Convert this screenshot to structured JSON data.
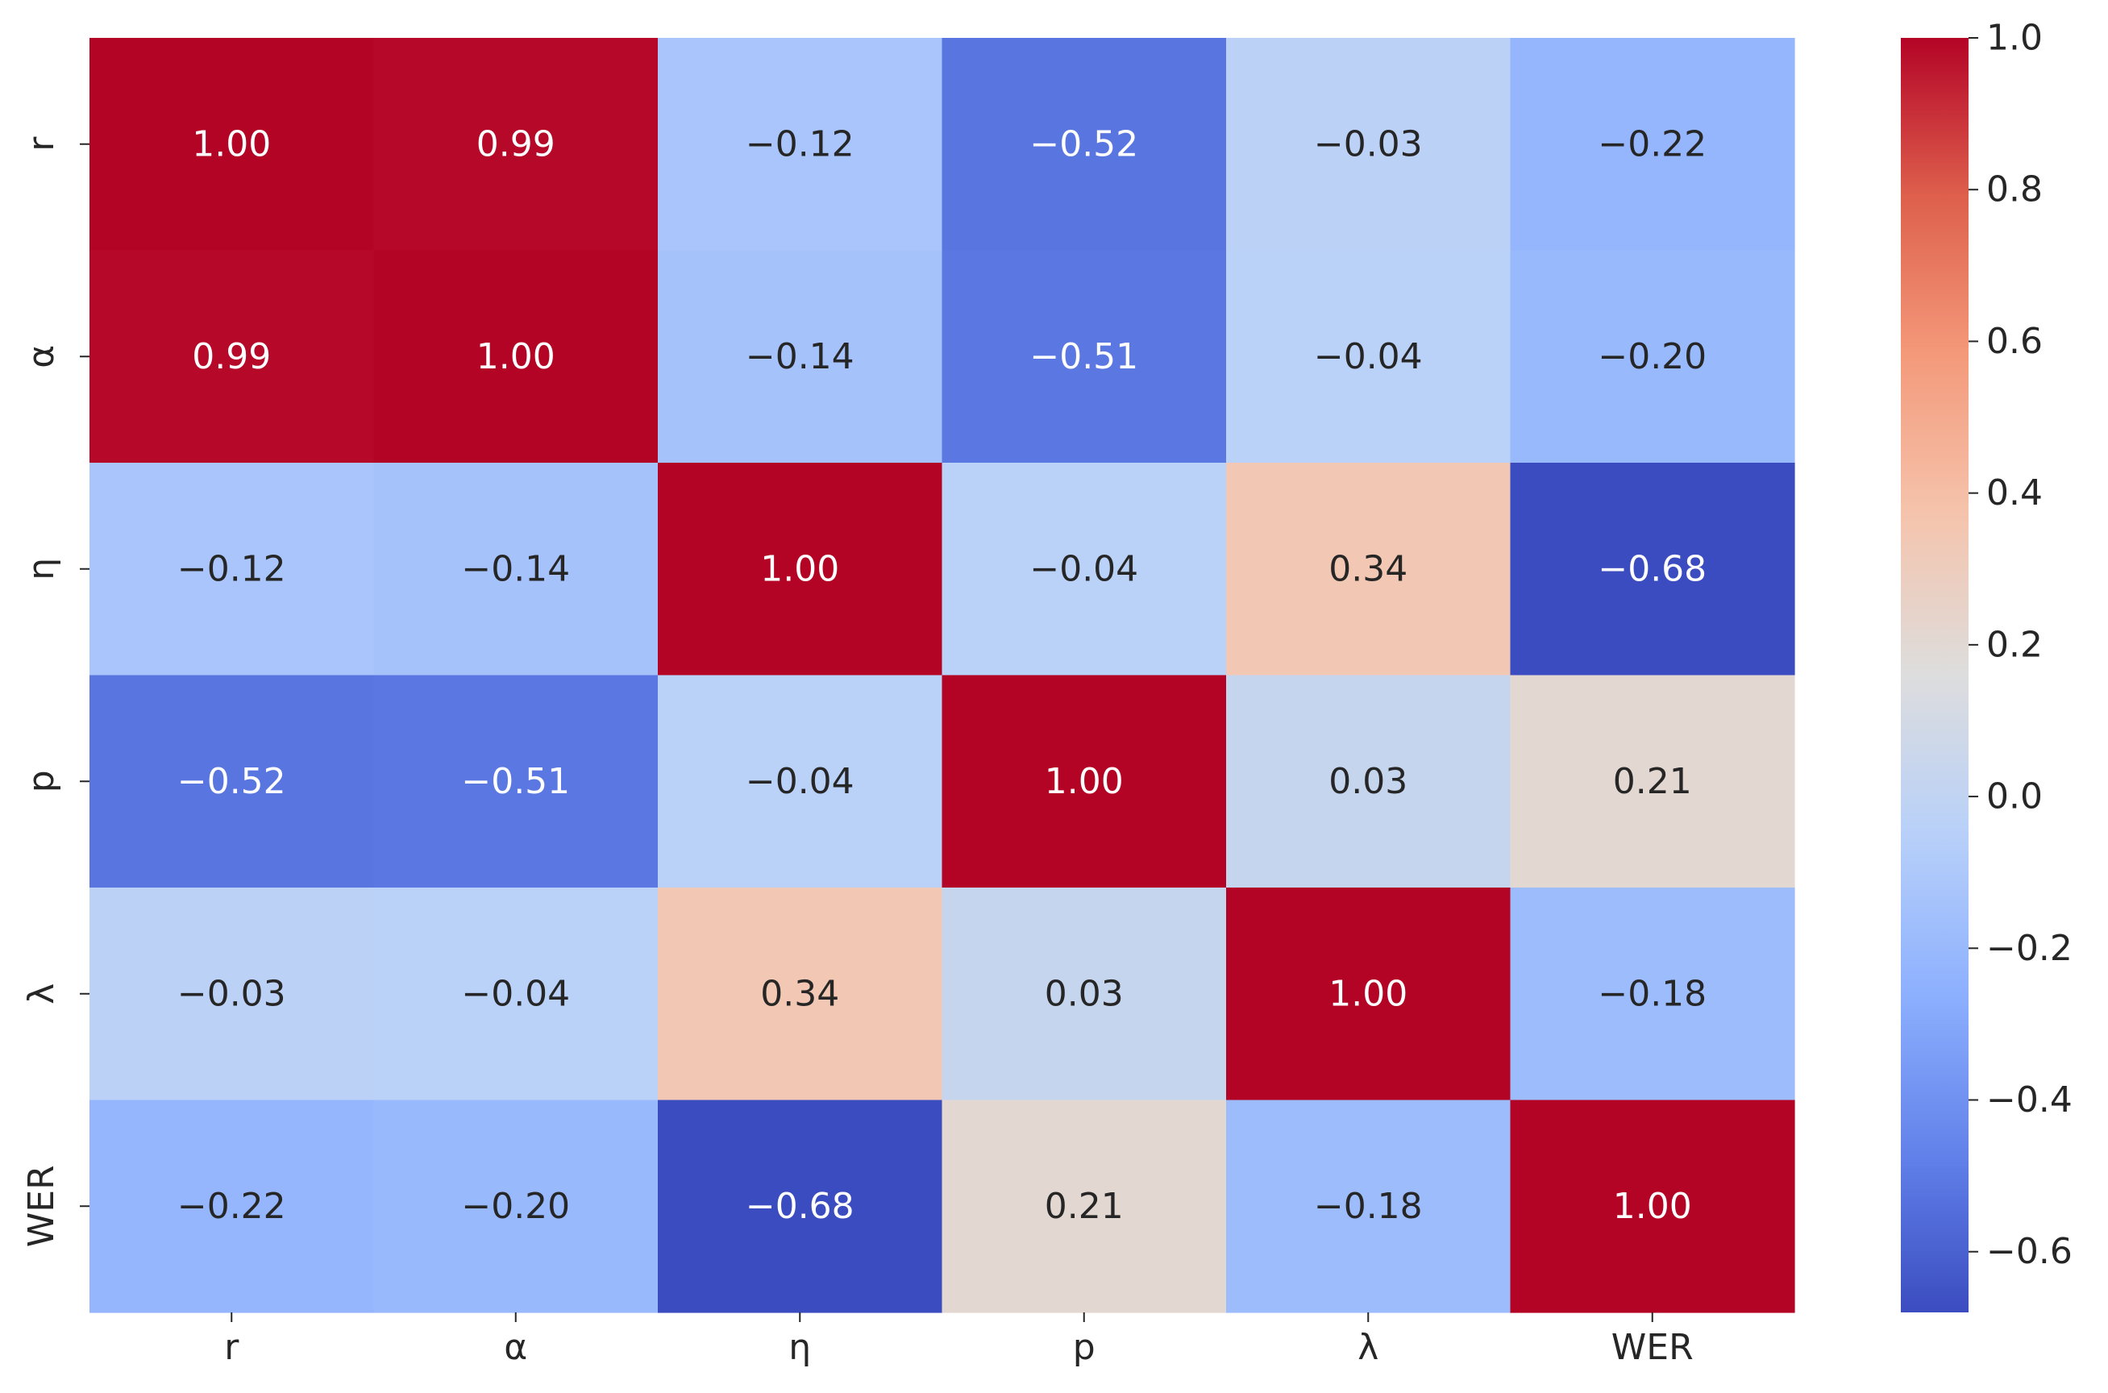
{
  "chart_data": {
    "type": "heatmap",
    "title": "",
    "xlabel": "",
    "ylabel": "",
    "x_categories": [
      "r",
      "α",
      "η",
      "p",
      "λ",
      "WER"
    ],
    "y_categories": [
      "r",
      "α",
      "η",
      "p",
      "λ",
      "WER"
    ],
    "values": [
      [
        1.0,
        0.99,
        -0.12,
        -0.52,
        -0.03,
        -0.22
      ],
      [
        0.99,
        1.0,
        -0.14,
        -0.51,
        -0.04,
        -0.2
      ],
      [
        -0.12,
        -0.14,
        1.0,
        -0.04,
        0.34,
        -0.68
      ],
      [
        -0.52,
        -0.51,
        -0.04,
        1.0,
        0.03,
        0.21
      ],
      [
        -0.03,
        -0.04,
        0.34,
        0.03,
        1.0,
        -0.18
      ],
      [
        -0.22,
        -0.2,
        -0.68,
        0.21,
        -0.18,
        1.0
      ]
    ],
    "cell_labels": [
      [
        "1.00",
        "0.99",
        "−0.12",
        "−0.52",
        "−0.03",
        "−0.22"
      ],
      [
        "0.99",
        "1.00",
        "−0.14",
        "−0.51",
        "−0.04",
        "−0.20"
      ],
      [
        "−0.12",
        "−0.14",
        "1.00",
        "−0.04",
        "0.34",
        "−0.68"
      ],
      [
        "−0.52",
        "−0.51",
        "−0.04",
        "1.00",
        "0.03",
        "0.21"
      ],
      [
        "−0.03",
        "−0.04",
        "0.34",
        "0.03",
        "1.00",
        "−0.18"
      ],
      [
        "−0.22",
        "−0.20",
        "−0.68",
        "0.21",
        "−0.18",
        "1.00"
      ]
    ],
    "colormap": "coolwarm",
    "vmin": -0.68,
    "vmax": 1.0,
    "colorbar": {
      "position": "right",
      "ticks": [
        1.0,
        0.8,
        0.6,
        0.4,
        0.2,
        0.0,
        -0.2,
        -0.4,
        -0.6
      ],
      "tick_labels": [
        "1.0",
        "0.8",
        "0.6",
        "0.4",
        "0.2",
        "0.0",
        "−0.2",
        "−0.4",
        "−0.6"
      ]
    },
    "grid": false,
    "colors": {
      "dark_text": "#262626",
      "light_text": "#ffffff",
      "axis": "#262626"
    }
  }
}
